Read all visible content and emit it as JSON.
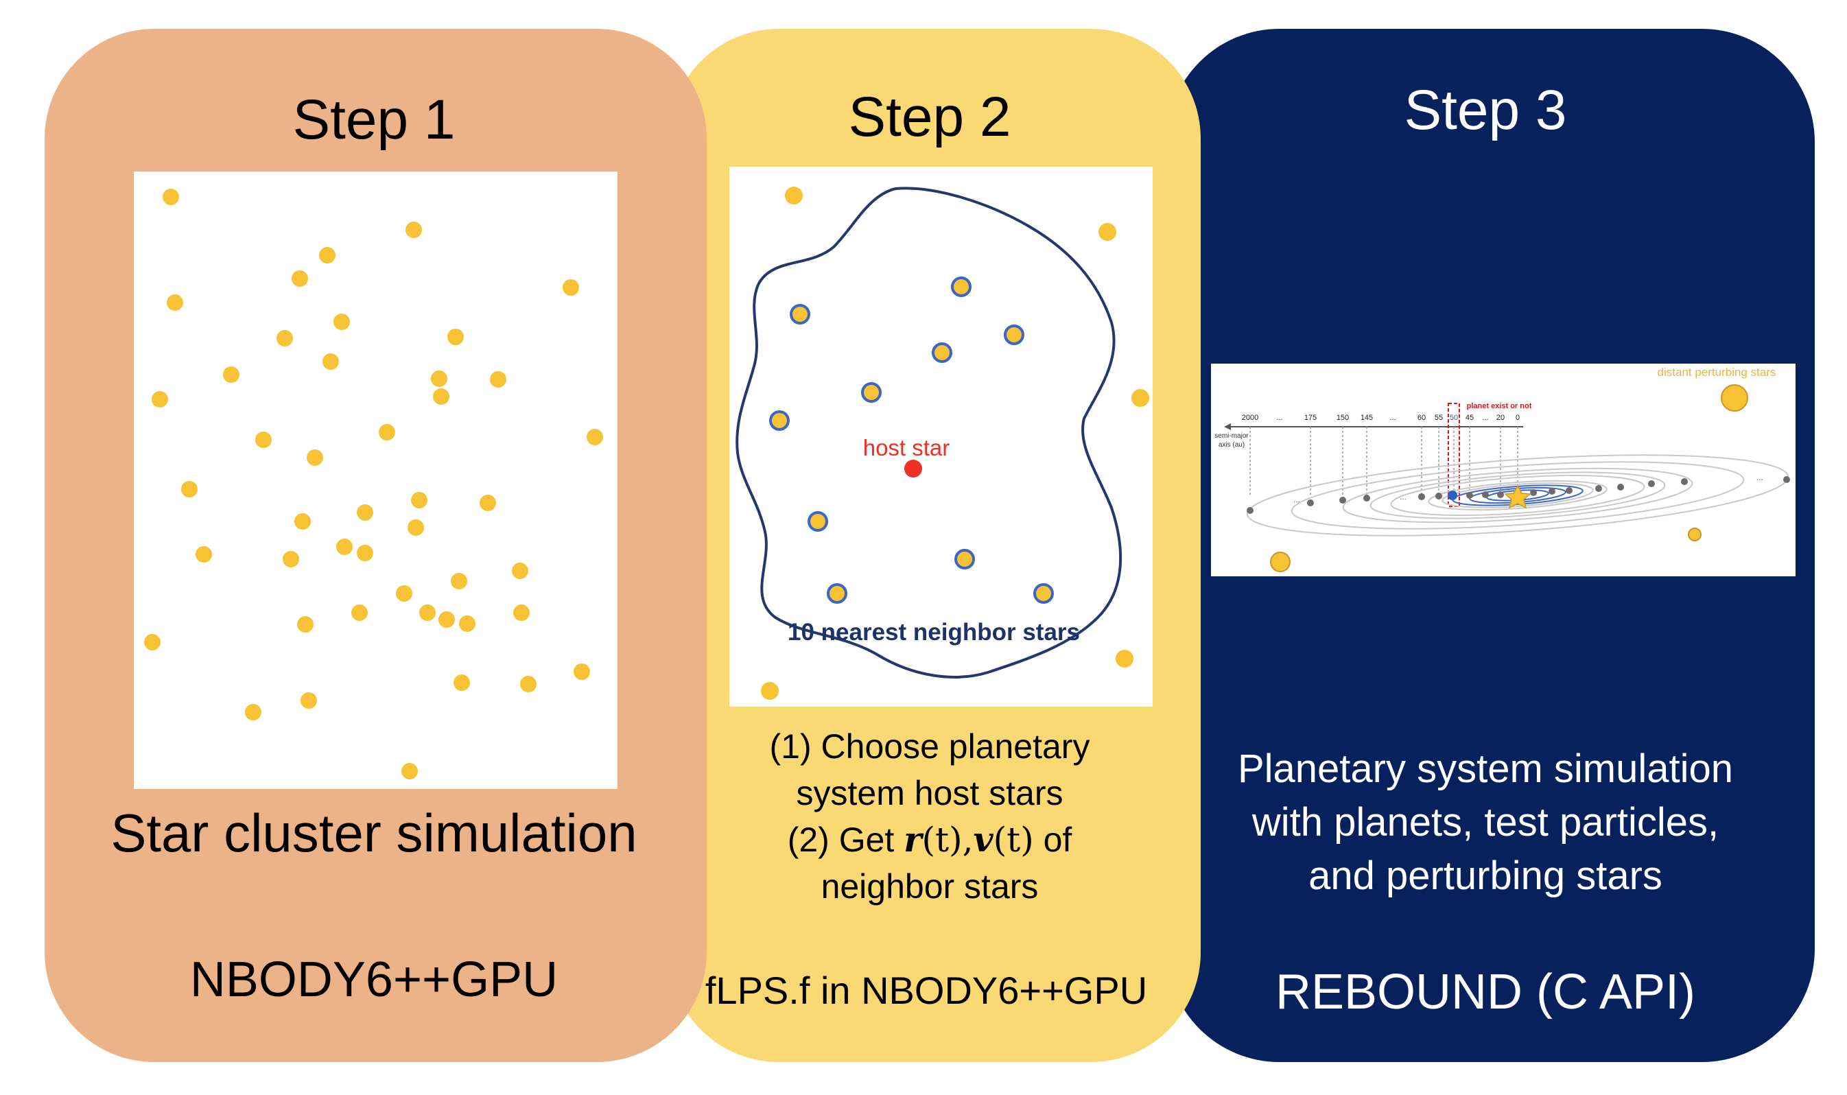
{
  "colors": {
    "panel1": "#ECB388",
    "panel2": "#FAD974",
    "panel3": "#06215B",
    "star": "#F7C234",
    "neighbor_ring": "#3C66C6",
    "host_star": "#EE3124",
    "boundary": "#23386E"
  },
  "step1": {
    "title": "Step 1",
    "caption": "Star cluster simulation",
    "tool": "NBODY6++GPU"
  },
  "step2": {
    "title": "Step 2",
    "host_star_label": "host star",
    "neighbor_label": "10 nearest neighbor stars",
    "line1": "(1) Choose planetary",
    "line2": "system host stars",
    "line3_prefix": "(2) Get ",
    "r_symbol": "r",
    "v_symbol": "v",
    "time_arg": "(t)",
    "comma": ",",
    "line3_suffix": " of",
    "line4": "neighbor stars",
    "tool": "fLPS.f in NBODY6++GPU"
  },
  "step3": {
    "title": "Step 3",
    "perturber_label": "distant perturbing stars",
    "planet_label": "planet exist or not",
    "axis_label_1": "semi-major",
    "axis_label_2": "axis (au)",
    "axis_ticks": [
      "2000",
      "...",
      "175",
      "150",
      "145",
      "...",
      "60",
      "55",
      "50",
      "45",
      "...",
      "20",
      "0"
    ],
    "orbit_ellipsis": "...",
    "caption_line1": "Planetary system simulation",
    "caption_line2": "with planets, test particles,",
    "caption_line3": "and perturbing stars",
    "tool": "REBOUND (C API)"
  }
}
